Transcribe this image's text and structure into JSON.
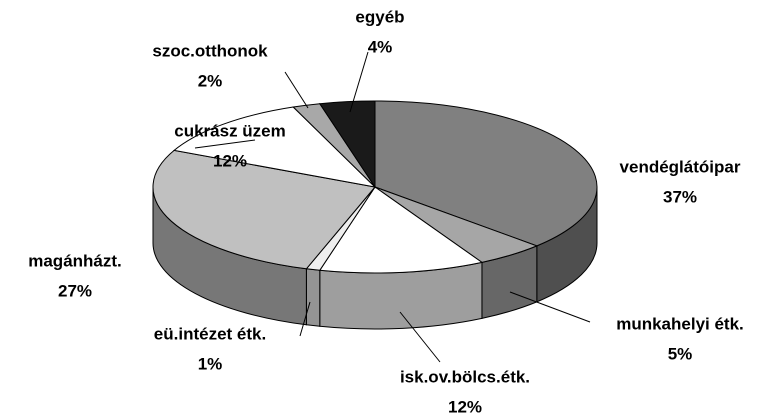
{
  "chart_data": {
    "type": "pie3d",
    "categories": [
      "vendéglátóipar",
      "munkahelyi étk.",
      "isk.ov.bölcs.étk.",
      "eü.intézet étk.",
      "magánházt.",
      "cukrász üzem",
      "szoc.otthonok",
      "egyéb"
    ],
    "values": [
      37,
      5,
      12,
      1,
      27,
      12,
      2,
      4
    ],
    "value_labels": [
      "37%",
      "5%",
      "12%",
      "1%",
      "27%",
      "12%",
      "2%",
      "4%"
    ],
    "colors": [
      "#808080",
      "#a6a6a6",
      "#ffffff",
      "#eeeeee",
      "#c0c0c0",
      "#ffffff",
      "#a8a8a8",
      "#1a1a1a"
    ]
  }
}
